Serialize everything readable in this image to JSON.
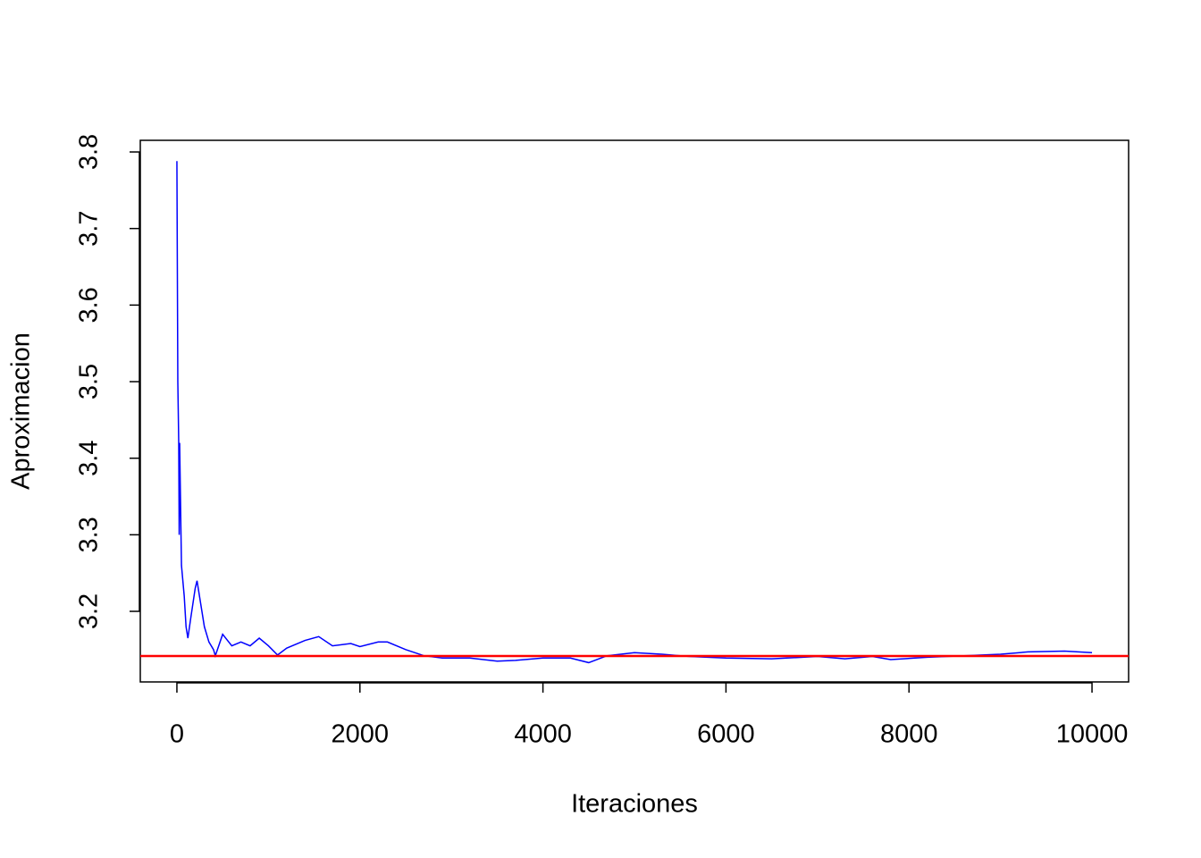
{
  "chart_data": {
    "type": "line",
    "xlabel": "Iteraciones",
    "ylabel": "Aproximacion",
    "x": [
      0,
      10,
      20,
      25,
      30,
      50,
      80,
      100,
      120,
      150,
      200,
      220,
      260,
      300,
      350,
      400,
      420,
      500,
      600,
      700,
      800,
      900,
      1000,
      1100,
      1200,
      1400,
      1550,
      1700,
      1900,
      2000,
      2200,
      2300,
      2500,
      2700,
      2900,
      3200,
      3500,
      3700,
      4000,
      4300,
      4500,
      4700,
      5000,
      5300,
      5600,
      6000,
      6500,
      7000,
      7300,
      7600,
      7800,
      8200,
      8600,
      9000,
      9300,
      9700,
      10000
    ],
    "series": [
      {
        "color": "#0000ff",
        "values": [
          3.788,
          3.5,
          3.42,
          3.3,
          3.42,
          3.26,
          3.22,
          3.18,
          3.165,
          3.19,
          3.23,
          3.24,
          3.21,
          3.18,
          3.16,
          3.15,
          3.142,
          3.17,
          3.155,
          3.16,
          3.155,
          3.165,
          3.155,
          3.143,
          3.152,
          3.162,
          3.167,
          3.155,
          3.158,
          3.154,
          3.16,
          3.16,
          3.15,
          3.142,
          3.139,
          3.139,
          3.135,
          3.136,
          3.139,
          3.139,
          3.133,
          3.142,
          3.146,
          3.144,
          3.141,
          3.139,
          3.138,
          3.141,
          3.138,
          3.141,
          3.137,
          3.14,
          3.142,
          3.144,
          3.147,
          3.148,
          3.146
        ]
      }
    ],
    "reference_line": {
      "value": 3.1416,
      "color": "#ff0000"
    },
    "xlim": [
      -400,
      10400
    ],
    "ylim": [
      3.1078,
      3.8152
    ],
    "xticks": [
      0,
      2000,
      4000,
      6000,
      8000,
      10000
    ],
    "yticks": [
      3.2,
      3.3,
      3.4,
      3.5,
      3.6,
      3.7,
      3.8
    ]
  }
}
